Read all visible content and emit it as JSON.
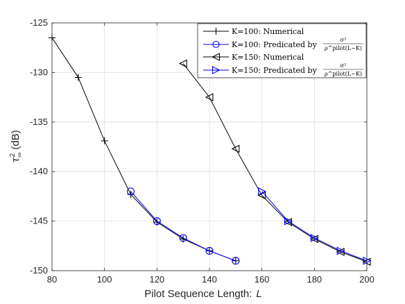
{
  "chart_data": {
    "type": "line",
    "xlabel": "Pilot Sequence Length:",
    "xlabel_var": "L",
    "ylabel": "τ",
    "ylabel_sub": "∞",
    "ylabel_sup": "2",
    "ylabel_unit": "(dB)",
    "xlim": [
      80,
      200
    ],
    "ylim": [
      -150,
      -125
    ],
    "xticks": [
      80,
      100,
      120,
      140,
      160,
      180,
      200
    ],
    "yticks": [
      -125,
      -130,
      -135,
      -140,
      -145,
      -150
    ],
    "grid": true,
    "legend_position": "top-right",
    "series": [
      {
        "name": "K=100: Numerical",
        "color": "#000000",
        "marker": "plus",
        "x": [
          80,
          90,
          100,
          110,
          120,
          130,
          140,
          150
        ],
        "y": [
          -126.5,
          -130.5,
          -136.9,
          -142.3,
          -145.1,
          -146.8,
          -148.0,
          -149.0
        ]
      },
      {
        "name_prefix": "K=100: Predicated by",
        "color": "#0000ff",
        "marker": "circle",
        "x": [
          110,
          120,
          130,
          140,
          150
        ],
        "y": [
          -142.0,
          -145.0,
          -146.7,
          -148.0,
          -149.0
        ]
      },
      {
        "name": "K=150: Numerical",
        "color": "#000000",
        "marker": "triangle-left",
        "x": [
          130,
          140,
          150,
          160,
          170,
          180,
          190,
          200
        ],
        "y": [
          -129.1,
          -132.5,
          -137.7,
          -142.4,
          -145.1,
          -146.8,
          -148.1,
          -149.1
        ]
      },
      {
        "name_prefix": "K=150: Predicated by",
        "color": "#0000ff",
        "marker": "triangle-right",
        "x": [
          160,
          170,
          180,
          190,
          200
        ],
        "y": [
          -142.0,
          -145.0,
          -146.7,
          -148.0,
          -149.0
        ]
      }
    ],
    "legend_formula": {
      "numerator": "σ²",
      "denominator": "ρ^pilot(L−K)"
    }
  }
}
